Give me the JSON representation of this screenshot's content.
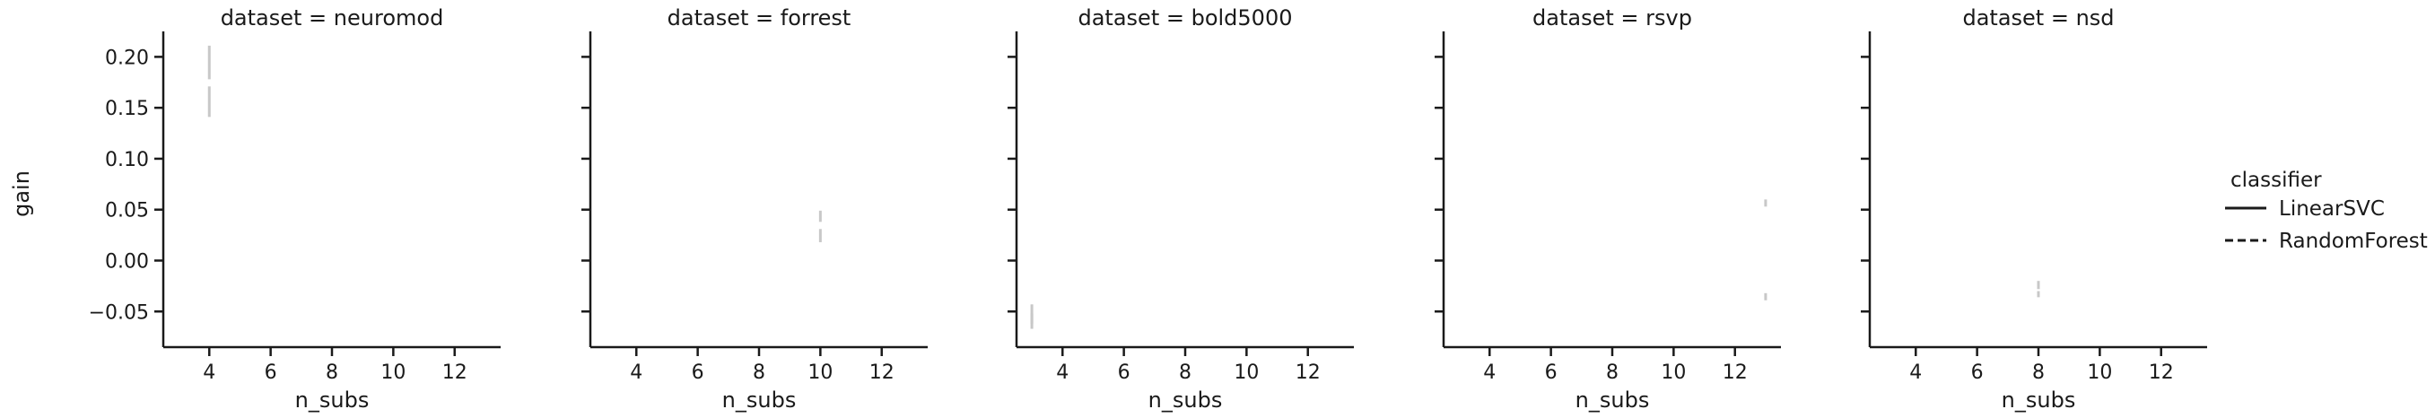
{
  "chart_data": {
    "type": "line",
    "facet_variable": "dataset",
    "xlabel": "n_subs",
    "ylabel": "gain",
    "xlim": [
      2.5,
      13.5
    ],
    "ylim": [
      -0.085,
      0.225
    ],
    "xticks": [
      4,
      6,
      8,
      10,
      12
    ],
    "yticks": [
      -0.05,
      0.0,
      0.05,
      0.1,
      0.15,
      0.2
    ],
    "ytick_labels": [
      "−0.05",
      "0.00",
      "0.05",
      "0.10",
      "0.15",
      "0.20"
    ],
    "grid": false,
    "panels": [
      {
        "title": "dataset = neuromod",
        "series": [
          {
            "classifier": "LinearSVC",
            "x": 4,
            "y_low": 0.178,
            "y_high": 0.211
          },
          {
            "classifier": "RandomForest",
            "x": 4,
            "y_low": 0.141,
            "y_high": 0.171
          }
        ]
      },
      {
        "title": "dataset = forrest",
        "series": [
          {
            "classifier": "LinearSVC",
            "x": 10,
            "y_low": 0.038,
            "y_high": 0.049
          },
          {
            "classifier": "RandomForest",
            "x": 10,
            "y_low": 0.018,
            "y_high": 0.031
          }
        ]
      },
      {
        "title": "dataset = bold5000",
        "series": [
          {
            "classifier": "LinearSVC",
            "x": 3,
            "y_low": -0.067,
            "y_high": -0.043
          },
          {
            "classifier": "RandomForest",
            "x": 3,
            "y_low": -0.062,
            "y_high": -0.052
          }
        ]
      },
      {
        "title": "dataset = rsvp",
        "series": [
          {
            "classifier": "LinearSVC",
            "x": 13,
            "y_low": 0.053,
            "y_high": 0.06
          },
          {
            "classifier": "RandomForest",
            "x": 13,
            "y_low": -0.039,
            "y_high": -0.032
          }
        ]
      },
      {
        "title": "dataset = nsd",
        "series": [
          {
            "classifier": "LinearSVC",
            "x": 8,
            "y_low": -0.028,
            "y_high": -0.02
          },
          {
            "classifier": "RandomForest",
            "x": 8,
            "y_low": -0.036,
            "y_high": -0.03
          }
        ]
      }
    ],
    "legend": {
      "title": "classifier",
      "placement": "right",
      "entries": [
        {
          "label": "LinearSVC",
          "style": "solid"
        },
        {
          "label": "RandomForest",
          "style": "dashed"
        }
      ]
    },
    "colors": {
      "axis": "#1a1a1a",
      "band": "#c8c8c8"
    }
  }
}
